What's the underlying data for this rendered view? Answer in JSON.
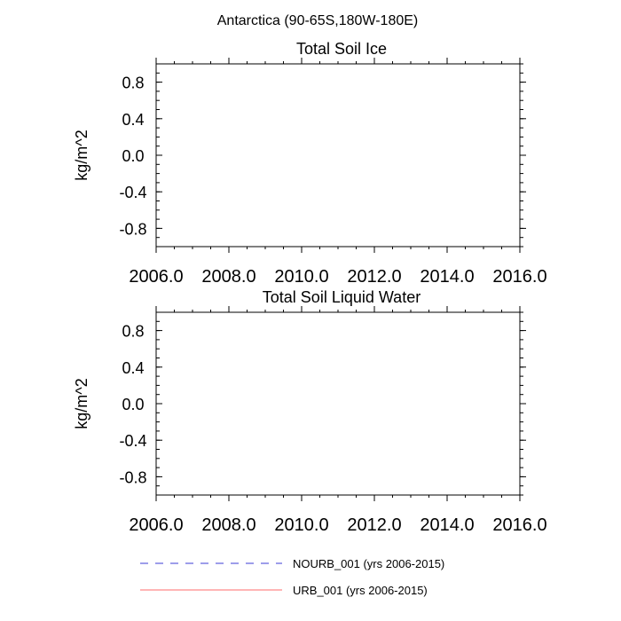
{
  "figure": {
    "suptitle": "Antarctica (90-65S,180W-180E)"
  },
  "chart_data": [
    {
      "type": "line",
      "title": "Total Soil Ice",
      "xlabel": "",
      "ylabel": "kg/m^2",
      "xlim": [
        2006.0,
        2016.0
      ],
      "ylim": [
        -1.0,
        1.0
      ],
      "xticks": [
        "2006.0",
        "2008.0",
        "2010.0",
        "2012.0",
        "2014.0",
        "2016.0"
      ],
      "yticks": [
        "0.8",
        "0.4",
        "0.0",
        "-0.4",
        "-0.8"
      ],
      "grid": false,
      "series": []
    },
    {
      "type": "line",
      "title": "Total Soil Liquid Water",
      "xlabel": "",
      "ylabel": "kg/m^2",
      "xlim": [
        2006.0,
        2016.0
      ],
      "ylim": [
        -1.0,
        1.0
      ],
      "xticks": [
        "2006.0",
        "2008.0",
        "2010.0",
        "2012.0",
        "2014.0",
        "2016.0"
      ],
      "yticks": [
        "0.8",
        "0.4",
        "0.0",
        "-0.4",
        "-0.8"
      ],
      "grid": false,
      "series": []
    }
  ],
  "legend": {
    "placement": "bottom-center",
    "items": [
      {
        "label": "NOURB_001 (yrs 2006-2015)",
        "color": "#3b3bd6",
        "style": "dashed"
      },
      {
        "label": "URB_001 (yrs 2006-2015)",
        "color": "#ff6b6b",
        "style": "solid"
      }
    ]
  }
}
